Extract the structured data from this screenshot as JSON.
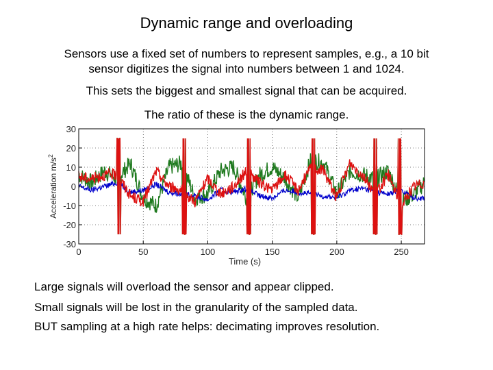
{
  "slide": {
    "title": "Dynamic range and overloading",
    "intro_lines": [
      "Sensors use a fixed set of numbers to represent samples, e.g., a 10 bit",
      "sensor digitizes the signal into numbers between 1 and 1024."
    ],
    "line2": "This sets the biggest and smallest signal that can be acquired.",
    "line3": "The ratio of these is the dynamic range.",
    "bullets": [
      "Large signals will overload the sensor and appear clipped.",
      "Small signals will be lost in the granularity of the sampled data.",
      "BUT sampling at a high rate helps: decimating improves resolution."
    ]
  },
  "chart_data": {
    "type": "line",
    "xlabel": "Time (s)",
    "ylabel": "Acceleration m/s",
    "ylabel_superscript": "2",
    "xlim": [
      0,
      268
    ],
    "ylim": [
      -30,
      30
    ],
    "xticks": [
      0,
      50,
      100,
      150,
      200,
      250
    ],
    "yticks": [
      30,
      20,
      10,
      0,
      -10,
      -20,
      -30
    ],
    "xtick_labels": [
      "0",
      "50",
      "100",
      "150",
      "200",
      "250"
    ],
    "ytick_labels": [
      "30",
      "20",
      "10",
      "0",
      "-10",
      "-20",
      "-30"
    ],
    "grid": true,
    "clip_level": 25,
    "series": [
      {
        "color": "#1f7a1f",
        "x": [
          0,
          10,
          20,
          30,
          40,
          50,
          60,
          70,
          80,
          90,
          100,
          110,
          120,
          130,
          140,
          150,
          160,
          170,
          180,
          190,
          200,
          210,
          220,
          230,
          240,
          250,
          260,
          268
        ],
        "y": [
          6,
          2,
          8,
          4,
          12,
          -6,
          -10,
          10,
          12,
          -6,
          -4,
          8,
          10,
          -6,
          6,
          10,
          4,
          -6,
          14,
          12,
          -4,
          8,
          6,
          4,
          8,
          -8,
          -4,
          2
        ]
      },
      {
        "color": "#0000cc",
        "x": [
          0,
          10,
          20,
          30,
          40,
          50,
          60,
          70,
          80,
          90,
          100,
          110,
          120,
          130,
          140,
          150,
          160,
          170,
          180,
          190,
          200,
          210,
          220,
          230,
          240,
          250,
          260,
          268
        ],
        "y": [
          0,
          -2,
          0,
          2,
          -3,
          -2,
          1,
          -3,
          -4,
          -5,
          -7,
          -2,
          -3,
          -1,
          -5,
          -6,
          -2,
          -3,
          -4,
          -5,
          -6,
          -2,
          -1,
          -3,
          -4,
          -2,
          -6,
          -6
        ]
      },
      {
        "color": "#dd1111",
        "x": [
          0,
          10,
          20,
          30,
          40,
          50,
          60,
          70,
          80,
          90,
          100,
          110,
          120,
          130,
          140,
          150,
          160,
          170,
          180,
          190,
          200,
          210,
          220,
          230,
          240,
          250,
          260,
          268
        ],
        "y": [
          5,
          4,
          6,
          6,
          -5,
          -8,
          8,
          0,
          -2,
          -8,
          4,
          -4,
          0,
          8,
          2,
          -2,
          6,
          -2,
          10,
          8,
          -6,
          12,
          6,
          -4,
          6,
          -10,
          0,
          2
        ]
      }
    ],
    "spike_times": [
      31,
      82,
      132,
      182,
      230,
      249
    ]
  }
}
